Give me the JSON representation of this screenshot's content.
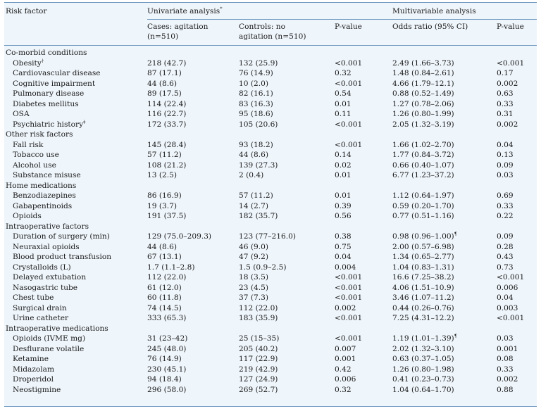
{
  "header": {
    "risk_factor": "Risk factor",
    "univariate": "Univariate analysis",
    "univariate_mark": "*",
    "multivariable": "Multivariable analysis",
    "cases_line1": "Cases: agitation",
    "cases_line2": "(n=510)",
    "controls_line1": "Controls: no",
    "controls_line2": "agitation (n=510)",
    "p_value_uni": "P-value",
    "odds_ratio": "Odds ratio (95% CI)",
    "p_value_multi": "P-value"
  },
  "rows": [
    {
      "kind": "section",
      "name": "Co-morbid conditions"
    },
    {
      "kind": "item",
      "name": "Obesity",
      "mark": "†",
      "cases": "218 (42.7)",
      "controls": "132 (25.9)",
      "p_uni": "<0.001",
      "or": "2.49 (1.66–3.73)",
      "or_mark": "",
      "p_multi": "<0.001"
    },
    {
      "kind": "item",
      "name": "Cardiovascular disease",
      "mark": "",
      "cases": "87 (17.1)",
      "controls": "76 (14.9)",
      "p_uni": "0.32",
      "or": "1.48 (0.84–2.61)",
      "or_mark": "",
      "p_multi": "0.17"
    },
    {
      "kind": "item",
      "name": "Cognitive impairment",
      "mark": "",
      "cases": "44 (8.6)",
      "controls": "10 (2.0)",
      "p_uni": "<0.001",
      "or": "4.66 (1.79–12.1)",
      "or_mark": "",
      "p_multi": "0.002"
    },
    {
      "kind": "item",
      "name": "Pulmonary disease",
      "mark": "",
      "cases": "89 (17.5)",
      "controls": "82 (16.1)",
      "p_uni": "0.54",
      "or": "0.88 (0.52–1.49)",
      "or_mark": "",
      "p_multi": "0.63"
    },
    {
      "kind": "item",
      "name": "Diabetes mellitus",
      "mark": "",
      "cases": "114 (22.4)",
      "controls": "83 (16.3)",
      "p_uni": "0.01",
      "or": "1.27 (0.78–2.06)",
      "or_mark": "",
      "p_multi": "0.33"
    },
    {
      "kind": "item",
      "name": "OSA",
      "mark": "",
      "cases": "116 (22.7)",
      "controls": "95 (18.6)",
      "p_uni": "0.11",
      "or": "1.26 (0.80–1.99)",
      "or_mark": "",
      "p_multi": "0.31"
    },
    {
      "kind": "item",
      "name": "Psychiatric history",
      "mark": "‡",
      "cases": "172 (33.7)",
      "controls": "105 (20.6)",
      "p_uni": "<0.001",
      "or": "2.05 (1.32–3.19)",
      "or_mark": "",
      "p_multi": "0.002"
    },
    {
      "kind": "section",
      "name": "Other risk factors"
    },
    {
      "kind": "item",
      "name": "Fall risk",
      "mark": "",
      "cases": "145 (28.4)",
      "controls": "93 (18.2)",
      "p_uni": "<0.001",
      "or": "1.66 (1.02–2.70)",
      "or_mark": "",
      "p_multi": "0.04"
    },
    {
      "kind": "item",
      "name": "Tobacco use",
      "mark": "",
      "cases": "57 (11.2)",
      "controls": "44 (8.6)",
      "p_uni": "0.14",
      "or": "1.77 (0.84–3.72)",
      "or_mark": "",
      "p_multi": "0.13"
    },
    {
      "kind": "item",
      "name": "Alcohol use",
      "mark": "",
      "cases": "108 (21.2)",
      "controls": "139 (27.3)",
      "p_uni": "0.02",
      "or": "0.66 (0.40–1.07)",
      "or_mark": "",
      "p_multi": "0.09"
    },
    {
      "kind": "item",
      "name": "Substance misuse",
      "mark": "",
      "cases": "13 (2.5)",
      "controls": "2 (0.4)",
      "p_uni": "0.01",
      "or": "6.77 (1.23–37.2)",
      "or_mark": "",
      "p_multi": "0.03"
    },
    {
      "kind": "section",
      "name": "Home medications"
    },
    {
      "kind": "item",
      "name": "Benzodiazepines",
      "mark": "",
      "cases": "86 (16.9)",
      "controls": "57 (11.2)",
      "p_uni": "0.01",
      "or": "1.12 (0.64–1.97)",
      "or_mark": "",
      "p_multi": "0.69"
    },
    {
      "kind": "item",
      "name": "Gabapentinoids",
      "mark": "",
      "cases": "19 (3.7)",
      "controls": "14 (2.7)",
      "p_uni": "0.39",
      "or": "0.59 (0.20–1.70)",
      "or_mark": "",
      "p_multi": "0.33"
    },
    {
      "kind": "item",
      "name": "Opioids",
      "mark": "",
      "cases": "191 (37.5)",
      "controls": "182 (35.7)",
      "p_uni": "0.56",
      "or": "0.77 (0.51–1.16)",
      "or_mark": "",
      "p_multi": "0.22"
    },
    {
      "kind": "section",
      "name": "Intraoperative factors"
    },
    {
      "kind": "item",
      "name": "Duration of surgery (min)",
      "mark": "",
      "cases": "129 (75.0–209.3)",
      "controls": "123 (77–216.0)",
      "p_uni": "0.38",
      "or": "0.98 (0.96–1.00)",
      "or_mark": "¶",
      "p_multi": "0.09"
    },
    {
      "kind": "item",
      "name": "Neuraxial opioids",
      "mark": "",
      "cases": "44 (8.6)",
      "controls": "46 (9.0)",
      "p_uni": "0.75",
      "or": "2.00 (0.57–6.98)",
      "or_mark": "",
      "p_multi": "0.28"
    },
    {
      "kind": "item",
      "name": "Blood product transfusion",
      "mark": "",
      "cases": "67 (13.1)",
      "controls": "47 (9.2)",
      "p_uni": "0.04",
      "or": "1.34 (0.65–2.77)",
      "or_mark": "",
      "p_multi": "0.43"
    },
    {
      "kind": "item",
      "name": "Crystalloids (L)",
      "mark": "",
      "cases": "1.7 (1.1–2.8)",
      "controls": "1.5 (0.9–2.5)",
      "p_uni": "0.004",
      "or": "1.04 (0.83–1.31)",
      "or_mark": "",
      "p_multi": "0.73"
    },
    {
      "kind": "item",
      "name": "Delayed extubation",
      "mark": "",
      "cases": "112 (22.0)",
      "controls": "18 (3.5)",
      "p_uni": "<0.001",
      "or": "16.6 (7.25–38.2)",
      "or_mark": "",
      "p_multi": "<0.001"
    },
    {
      "kind": "item",
      "name": "Nasogastric tube",
      "mark": "",
      "cases": "61 (12.0)",
      "controls": "23 (4.5)",
      "p_uni": "<0.001",
      "or": "4.06 (1.51–10.9)",
      "or_mark": "",
      "p_multi": "0.006"
    },
    {
      "kind": "item",
      "name": "Chest tube",
      "mark": "",
      "cases": "60 (11.8)",
      "controls": "37 (7.3)",
      "p_uni": "<0.001",
      "or": "3.46 (1.07–11.2)",
      "or_mark": "",
      "p_multi": "0.04"
    },
    {
      "kind": "item",
      "name": "Surgical drain",
      "mark": "",
      "cases": "74 (14.5)",
      "controls": "112 (22.0)",
      "p_uni": "0.002",
      "or": "0.44 (0.26–0.76)",
      "or_mark": "",
      "p_multi": "0.003"
    },
    {
      "kind": "item",
      "name": "Urine catheter",
      "mark": "",
      "cases": "333 (65.3)",
      "controls": "183 (35.9)",
      "p_uni": "<0.001",
      "or": "7.25 (4.31–12.2)",
      "or_mark": "",
      "p_multi": "<0.001"
    },
    {
      "kind": "section",
      "name": "Intraoperative medications"
    },
    {
      "kind": "item",
      "name": "Opioids (IVME mg)",
      "mark": "",
      "cases": "31 (23–42)",
      "controls": "25 (15–35)",
      "p_uni": "<0.001",
      "or": "1.19 (1.01–1.39)",
      "or_mark": "¶",
      "p_multi": "0.03"
    },
    {
      "kind": "item",
      "name": "Desflurane volatile",
      "mark": "",
      "cases": "245 (48.0)",
      "controls": "205 (40.2)",
      "p_uni": "0.007",
      "or": "2.02 (1.32–3.10)",
      "or_mark": "",
      "p_multi": "0.001"
    },
    {
      "kind": "item",
      "name": "Ketamine",
      "mark": "",
      "cases": "76 (14.9)",
      "controls": "117 (22.9)",
      "p_uni": "0.001",
      "or": "0.63 (0.37–1.05)",
      "or_mark": "",
      "p_multi": "0.08"
    },
    {
      "kind": "item",
      "name": "Midazolam",
      "mark": "",
      "cases": "230 (45.1)",
      "controls": "219 (42.9)",
      "p_uni": "0.42",
      "or": "1.26 (0.80–1.98)",
      "or_mark": "",
      "p_multi": "0.33"
    },
    {
      "kind": "item",
      "name": "Droperidol",
      "mark": "",
      "cases": "94 (18.4)",
      "controls": "127 (24.9)",
      "p_uni": "0.006",
      "or": "0.41 (0.23–0.73)",
      "or_mark": "",
      "p_multi": "0.002"
    },
    {
      "kind": "item",
      "name": "Neostigmine",
      "mark": "",
      "cases": "296 (58.0)",
      "controls": "269 (52.7)",
      "p_uni": "0.32",
      "or": "1.04 (0.64–1.70)",
      "or_mark": "",
      "p_multi": "0.88"
    }
  ]
}
